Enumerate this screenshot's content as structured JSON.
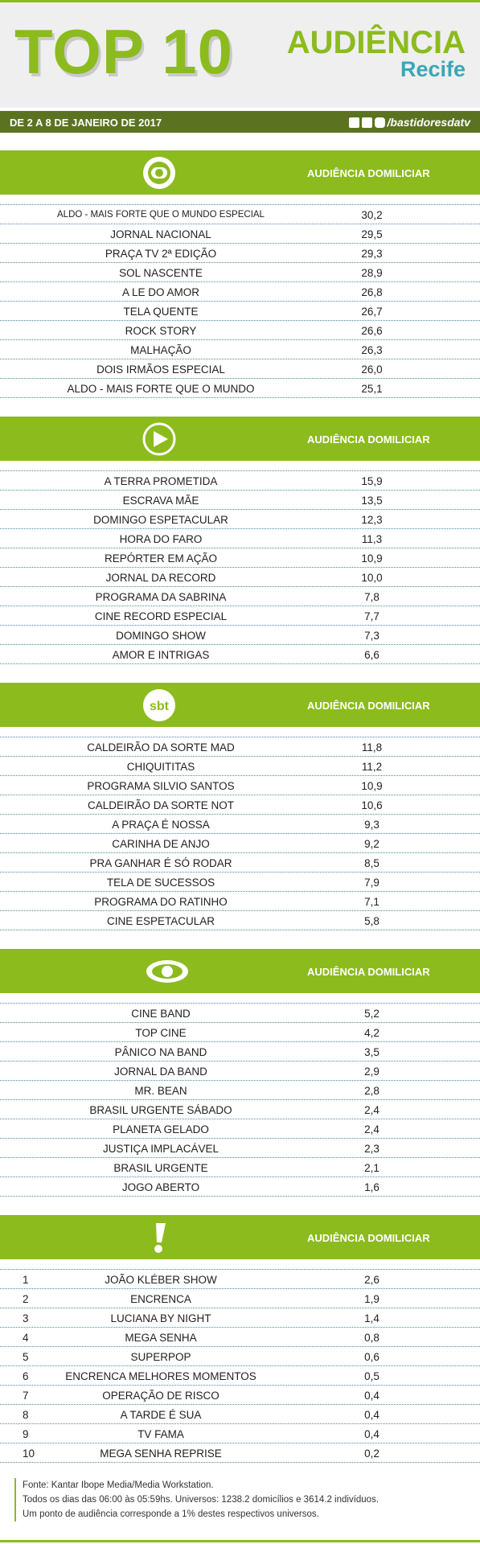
{
  "header": {
    "title": "TOP 10",
    "brand": "AUDIÊNCIA",
    "city": "Recife",
    "period": "DE 2 A 8 DE JANEIRO DE 2017",
    "social": "/bastidoresdatv"
  },
  "sections": [
    {
      "logo": "globo",
      "column": "AUDIÊNCIA DOMILICIAR",
      "rows": [
        {
          "name": "ALDO - MAIS FORTE QUE O MUNDO ESPECIAL",
          "value": "30,2"
        },
        {
          "name": "JORNAL NACIONAL",
          "value": "29,5"
        },
        {
          "name": "PRAÇA TV 2ª EDIÇÃO",
          "value": "29,3"
        },
        {
          "name": "SOL NASCENTE",
          "value": "28,9"
        },
        {
          "name": "A LE DO AMOR",
          "value": "26,8"
        },
        {
          "name": "TELA QUENTE",
          "value": "26,7"
        },
        {
          "name": "ROCK STORY",
          "value": "26,6"
        },
        {
          "name": "MALHAÇÃO",
          "value": "26,3"
        },
        {
          "name": "DOIS IRMÃOS ESPECIAL",
          "value": "26,0"
        },
        {
          "name": "ALDO - MAIS FORTE QUE O MUNDO",
          "value": "25,1"
        }
      ]
    },
    {
      "logo": "record",
      "column": "AUDIÊNCIA DOMILICIAR",
      "rows": [
        {
          "name": "A TERRA PROMETIDA",
          "value": "15,9"
        },
        {
          "name": "ESCRAVA MÃE",
          "value": "13,5"
        },
        {
          "name": "DOMINGO ESPETACULAR",
          "value": "12,3"
        },
        {
          "name": "HORA DO FARO",
          "value": "11,3"
        },
        {
          "name": "REPÓRTER EM AÇÃO",
          "value": "10,9"
        },
        {
          "name": "JORNAL DA RECORD",
          "value": "10,0"
        },
        {
          "name": "PROGRAMA DA SABRINA",
          "value": "7,8"
        },
        {
          "name": "CINE RECORD ESPECIAL",
          "value": "7,7"
        },
        {
          "name": "DOMINGO SHOW",
          "value": "7,3"
        },
        {
          "name": "AMOR E INTRIGAS",
          "value": "6,6"
        }
      ]
    },
    {
      "logo": "sbt",
      "logo_text": "sbt",
      "column": "AUDIÊNCIA DOMILICIAR",
      "rows": [
        {
          "name": "CALDEIRÃO DA SORTE MAD",
          "value": "11,8"
        },
        {
          "name": "CHIQUITITAS",
          "value": "11,2"
        },
        {
          "name": "PROGRAMA SILVIO SANTOS",
          "value": "10,9"
        },
        {
          "name": "CALDEIRÃO DA SORTE NOT",
          "value": "10,6"
        },
        {
          "name": "A PRAÇA É NOSSA",
          "value": "9,3"
        },
        {
          "name": "CARINHA DE ANJO",
          "value": "9,2"
        },
        {
          "name": "PRA GANHAR É SÓ RODAR",
          "value": "8,5"
        },
        {
          "name": "TELA DE SUCESSOS",
          "value": "7,9"
        },
        {
          "name": "PROGRAMA DO RATINHO",
          "value": "7,1"
        },
        {
          "name": "CINE ESPETACULAR",
          "value": "5,8"
        }
      ]
    },
    {
      "logo": "band",
      "column": "AUDIÊNCIA DOMILICIAR",
      "rows": [
        {
          "name": "CINE BAND",
          "value": "5,2"
        },
        {
          "name": "TOP CINE",
          "value": "4,2"
        },
        {
          "name": "PÂNICO NA BAND",
          "value": "3,5"
        },
        {
          "name": "JORNAL DA BAND",
          "value": "2,9"
        },
        {
          "name": "MR. BEAN",
          "value": "2,8"
        },
        {
          "name": "BRASIL URGENTE SÁBADO",
          "value": "2,4"
        },
        {
          "name": "PLANETA GELADO",
          "value": "2,4"
        },
        {
          "name": "JUSTIÇA IMPLACÁVEL",
          "value": "2,3"
        },
        {
          "name": "BRASIL URGENTE",
          "value": "2,1"
        },
        {
          "name": "JOGO ABERTO",
          "value": "1,6"
        }
      ]
    },
    {
      "logo": "redetv",
      "column": "AUDIÊNCIA DOMILICIAR",
      "rows": [
        {
          "rank": "1",
          "name": "JOÃO KLÉBER SHOW",
          "value": "2,6"
        },
        {
          "rank": "2",
          "name": "ENCRENCA",
          "value": "1,9"
        },
        {
          "rank": "3",
          "name": "LUCIANA BY NIGHT",
          "value": "1,4"
        },
        {
          "rank": "4",
          "name": "MEGA SENHA",
          "value": "0,8"
        },
        {
          "rank": "5",
          "name": "SUPERPOP",
          "value": "0,6"
        },
        {
          "rank": "6",
          "name": "ENCRENCA MELHORES MOMENTOS",
          "value": "0,5"
        },
        {
          "rank": "7",
          "name": "OPERAÇÃO DE RISCO",
          "value": "0,4"
        },
        {
          "rank": "8",
          "name": "A TARDE É SUA",
          "value": "0,4"
        },
        {
          "rank": "9",
          "name": "TV FAMA",
          "value": "0,4"
        },
        {
          "rank": "10",
          "name": "MEGA SENHA REPRISE",
          "value": "0,2"
        }
      ]
    }
  ],
  "footer": [
    "Fonte: Kantar Ibope Media/Media Workstation.",
    "Todos os dias das 06:00 às 05:59hs. Universos: 1238.2 domicílios e 3614.2 indivíduos.",
    "Um ponto de audiência corresponde a 1% destes respectivos universos."
  ]
}
